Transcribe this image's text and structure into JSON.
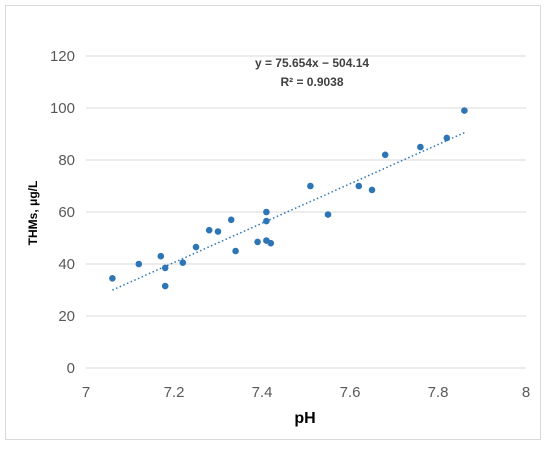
{
  "chart_data": {
    "type": "scatter",
    "title": "",
    "xlabel": "pH",
    "ylabel": "THMs, μg/L",
    "xlim": [
      7,
      8
    ],
    "ylim": [
      0,
      120
    ],
    "x_ticks": [
      "7",
      "7.2",
      "7.4",
      "7.6",
      "7.8",
      "8"
    ],
    "y_ticks": [
      "0",
      "20",
      "40",
      "60",
      "80",
      "100",
      "120"
    ],
    "x_tick_values": [
      7,
      7.2,
      7.4,
      7.6,
      7.8,
      8
    ],
    "y_tick_values": [
      0,
      20,
      40,
      60,
      80,
      100,
      120
    ],
    "grid": "horizontal",
    "legend": "none",
    "series": [
      {
        "points": [
          {
            "x": 7.06,
            "y": 34.5
          },
          {
            "x": 7.12,
            "y": 40
          },
          {
            "x": 7.17,
            "y": 43
          },
          {
            "x": 7.18,
            "y": 38.5
          },
          {
            "x": 7.18,
            "y": 31.5
          },
          {
            "x": 7.22,
            "y": 40.5
          },
          {
            "x": 7.25,
            "y": 46.5
          },
          {
            "x": 7.28,
            "y": 53
          },
          {
            "x": 7.3,
            "y": 52.5
          },
          {
            "x": 7.33,
            "y": 57
          },
          {
            "x": 7.34,
            "y": 45
          },
          {
            "x": 7.39,
            "y": 48.5
          },
          {
            "x": 7.41,
            "y": 60
          },
          {
            "x": 7.41,
            "y": 56.5
          },
          {
            "x": 7.41,
            "y": 49
          },
          {
            "x": 7.42,
            "y": 48
          },
          {
            "x": 7.51,
            "y": 70
          },
          {
            "x": 7.55,
            "y": 59
          },
          {
            "x": 7.62,
            "y": 70
          },
          {
            "x": 7.65,
            "y": 68.5
          },
          {
            "x": 7.68,
            "y": 82
          },
          {
            "x": 7.76,
            "y": 85
          },
          {
            "x": 7.82,
            "y": 88.5
          },
          {
            "x": 7.86,
            "y": 99
          }
        ]
      }
    ],
    "trendline": {
      "type": "linear",
      "slope": 75.654,
      "intercept": -504.14,
      "x_range": [
        7.06,
        7.86
      ],
      "equation_label": "y = 75.654x − 504.14",
      "r2_label": "R² = 0.9038"
    },
    "colors": {
      "marker": "#2e75b6",
      "trendline": "#2e75b6",
      "grid": "#d9d9d9",
      "tick_text": "#595959"
    }
  }
}
